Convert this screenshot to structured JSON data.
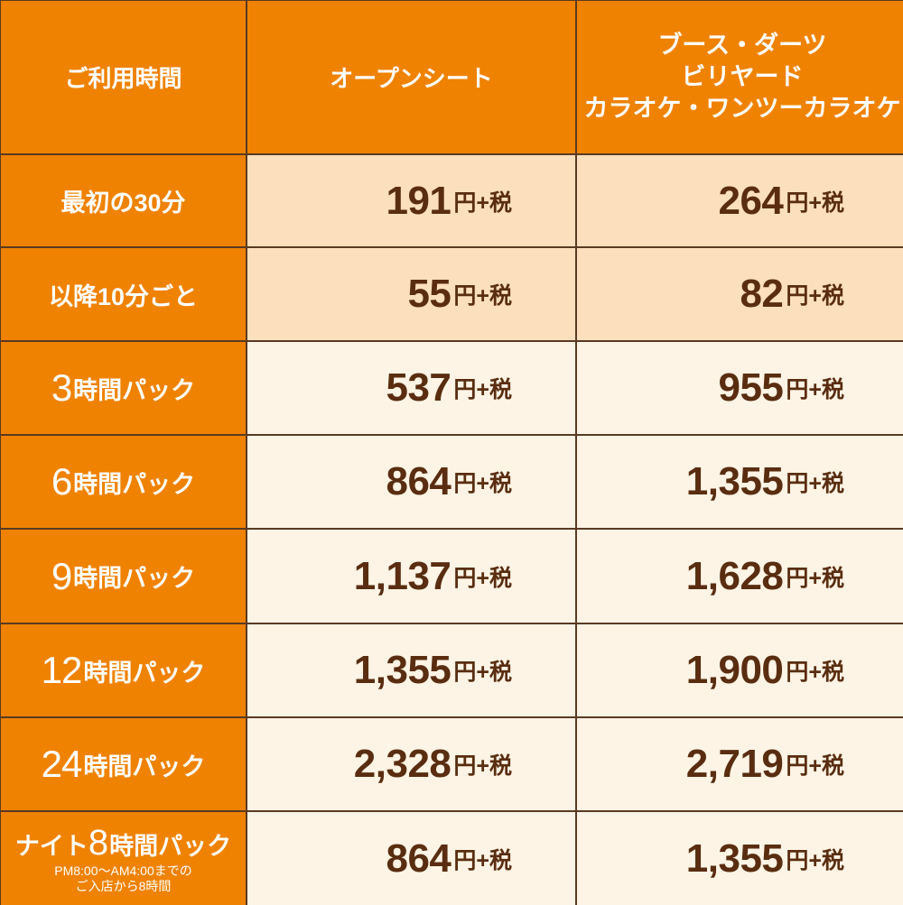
{
  "header": {
    "usage_time": "ご利用時間",
    "open_seat": "オープンシート",
    "booth_lines": [
      "ブース・ダーツ",
      "ビリヤード",
      "カラオケ・ワンツーカラオケ"
    ]
  },
  "unit_suffix": "円+税",
  "rows": [
    {
      "label": "最初の30分",
      "open": "191",
      "booth": "264",
      "highlight": true
    },
    {
      "label": "以降10分ごと",
      "open": "55",
      "booth": "82",
      "highlight": true
    },
    {
      "label_num": "3",
      "label_text": "時間パック",
      "open": "537",
      "booth": "955"
    },
    {
      "label_num": "6",
      "label_text": "時間パック",
      "open": "864",
      "booth": "1,355"
    },
    {
      "label_num": "9",
      "label_text": "時間パック",
      "open": "1,137",
      "booth": "1,628"
    },
    {
      "label_num": "12",
      "label_text": "時間パック",
      "open": "1,355",
      "booth": "1,900"
    },
    {
      "label_num": "24",
      "label_text": "時間パック",
      "open": "2,328",
      "booth": "2,719"
    },
    {
      "label_pre": "ナイト",
      "label_num": "8",
      "label_text": "時間パック",
      "sub1": "PM8:00～AM4:00までの",
      "sub2": "ご入店から8時間",
      "open": "864",
      "booth": "1,355"
    }
  ],
  "colors": {
    "header_bg": "#ef8200",
    "highlight_bg": "#fce0bd",
    "row_bg": "#fdf4e5",
    "price_text": "#5a2d10",
    "border": "#5a3a22"
  }
}
